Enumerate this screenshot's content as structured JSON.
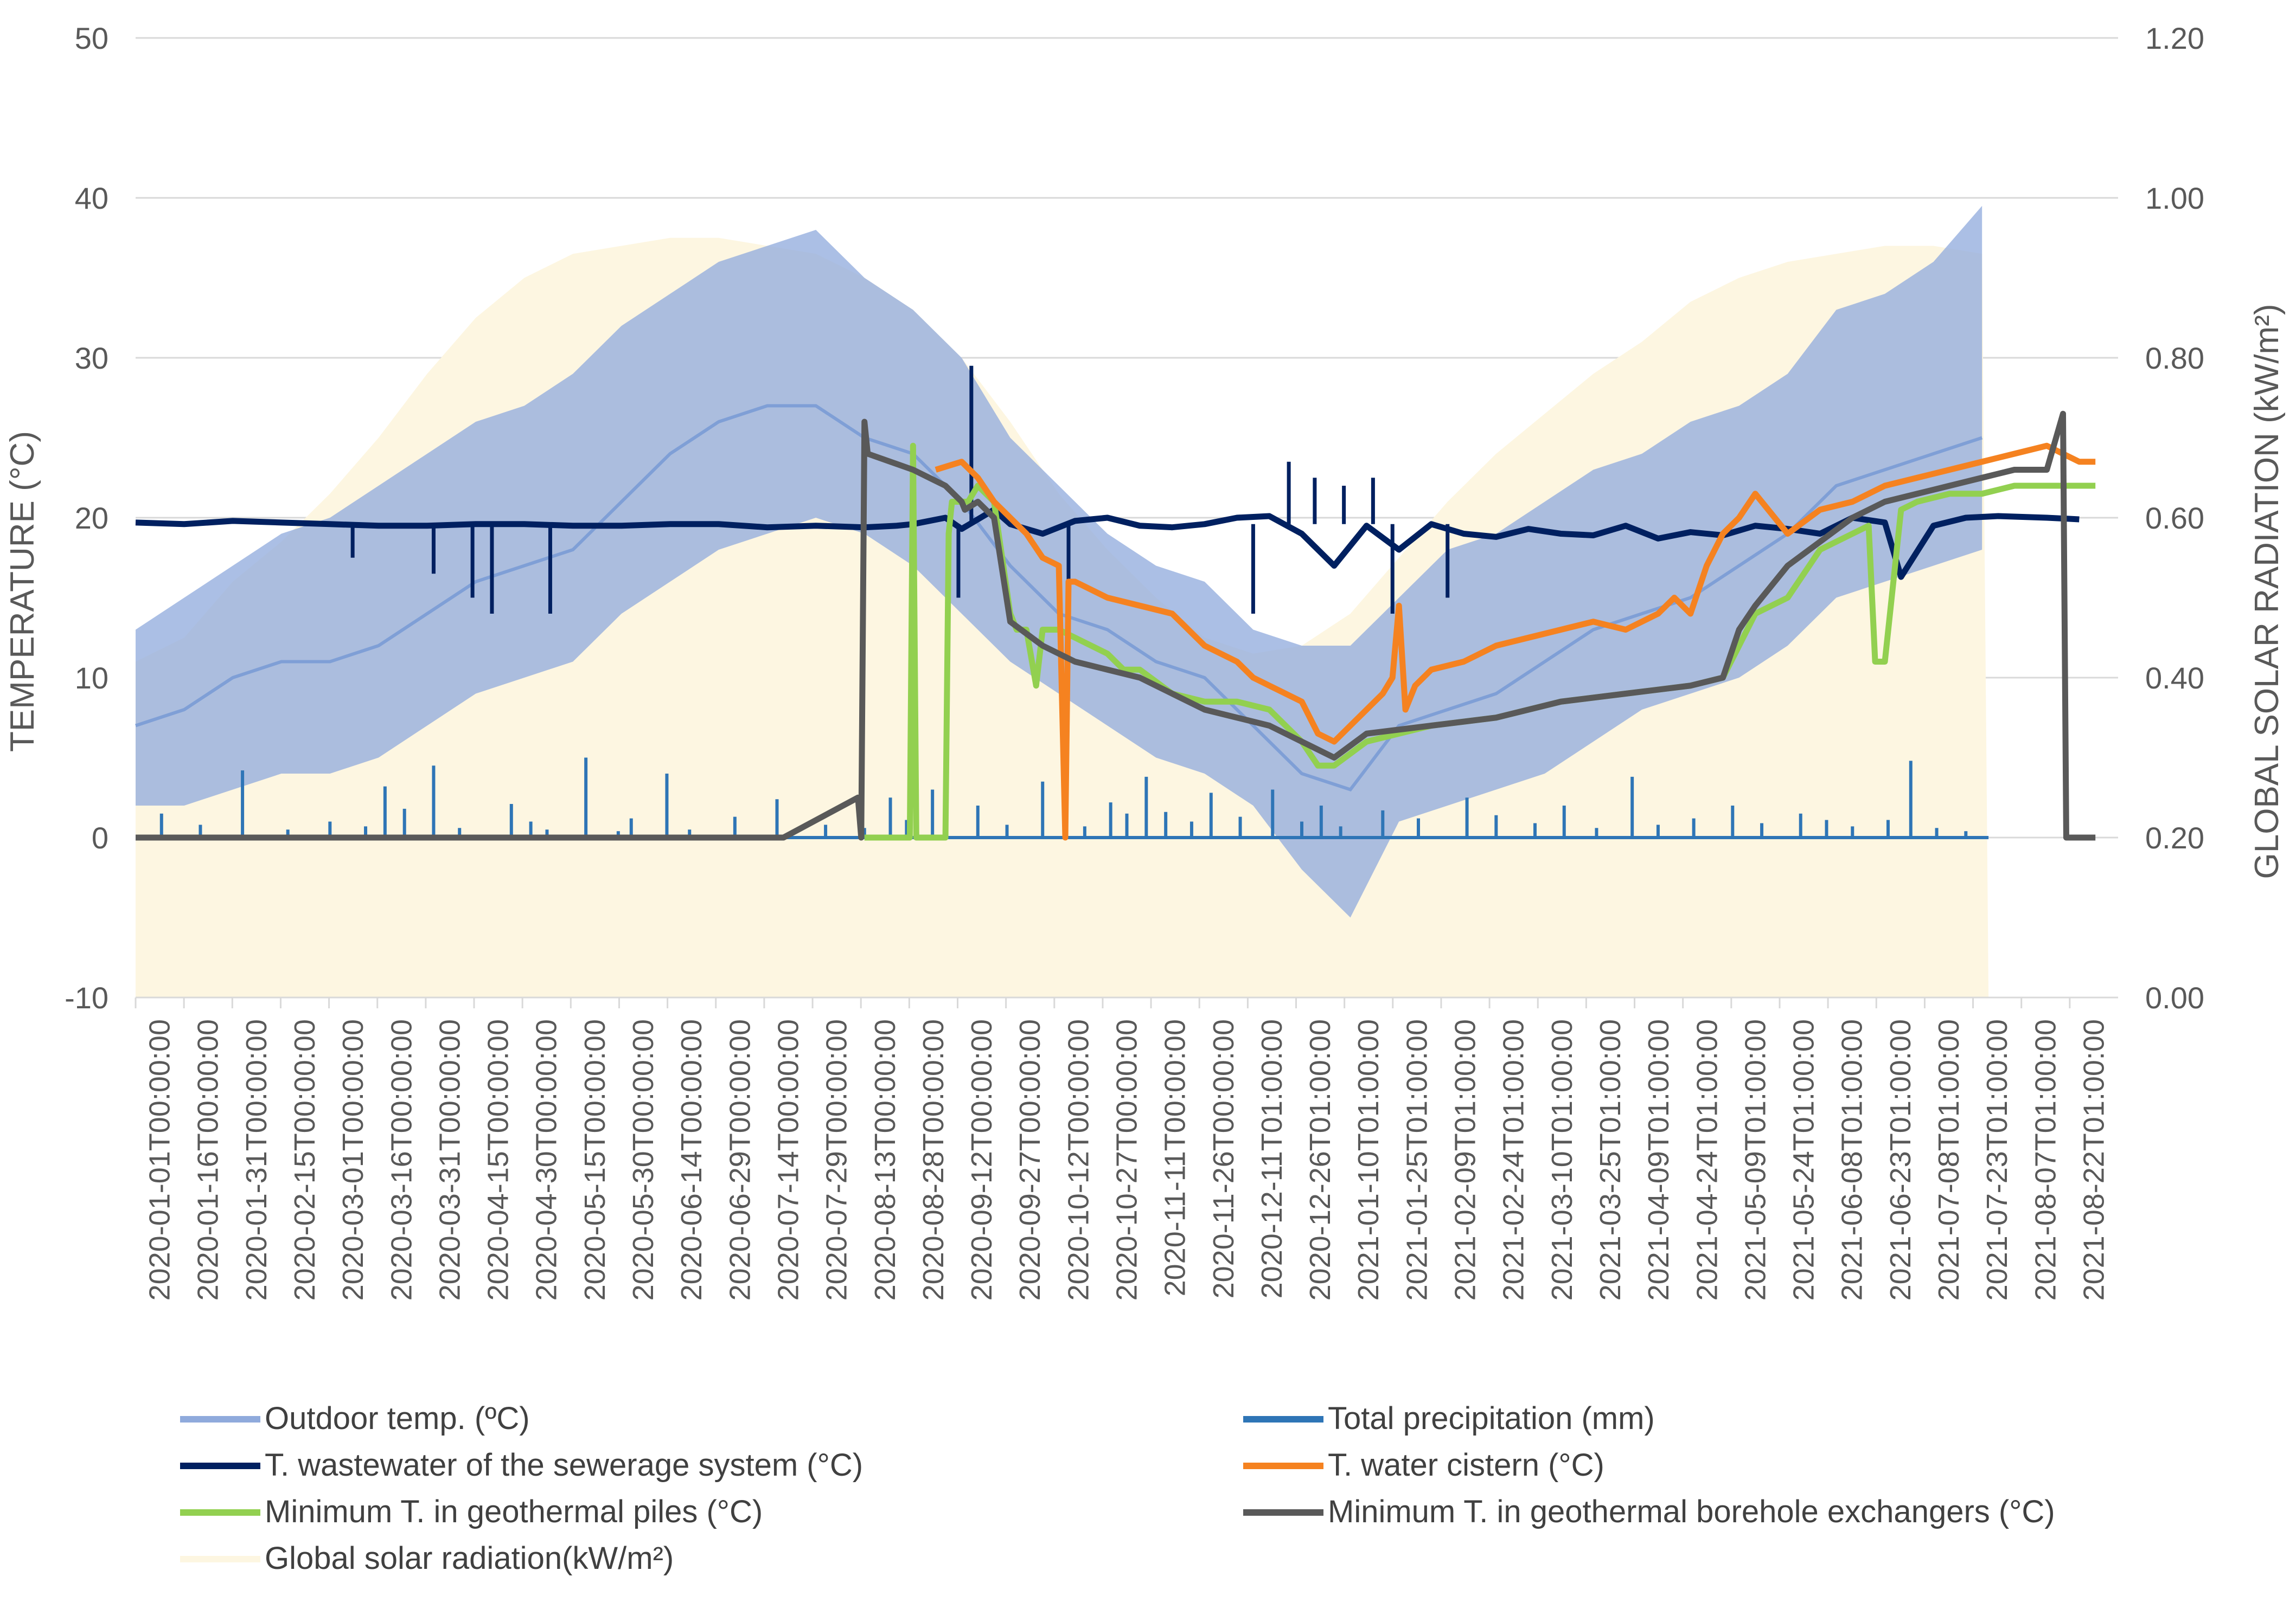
{
  "chart_data": {
    "type": "line",
    "title": "",
    "ylabel_left": "TEMPERATURE (°C)",
    "ylabel_right": "GLOBAL SOLAR RADIATION (kW/m²)",
    "ylim_left": [
      -10,
      50
    ],
    "ylim_right": [
      0.0,
      1.2
    ],
    "yticks_left": [
      "-10",
      "0",
      "10",
      "20",
      "30",
      "40",
      "50"
    ],
    "yticks_right": [
      "0.00",
      "0.20",
      "0.40",
      "0.60",
      "0.80",
      "1.00",
      "1.20"
    ],
    "grid": true,
    "legend_position": "bottom",
    "x_tick_labels": [
      "2020-01-01T00:00:00",
      "2020-01-16T00:00:00",
      "2020-01-31T00:00:00",
      "2020-02-15T00:00:00",
      "2020-03-01T00:00:00",
      "2020-03-16T00:00:00",
      "2020-03-31T00:00:00",
      "2020-04-15T00:00:00",
      "2020-04-30T00:00:00",
      "2020-05-15T00:00:00",
      "2020-05-30T00:00:00",
      "2020-06-14T00:00:00",
      "2020-06-29T00:00:00",
      "2020-07-14T00:00:00",
      "2020-07-29T00:00:00",
      "2020-08-13T00:00:00",
      "2020-08-28T00:00:00",
      "2020-09-12T00:00:00",
      "2020-09-27T00:00:00",
      "2020-10-12T00:00:00",
      "2020-10-27T00:00:00",
      "2020-11-11T00:00:00",
      "2020-11-26T00:00:00",
      "2020-12-11T01:00:00",
      "2020-12-26T01:00:00",
      "2021-01-10T01:00:00",
      "2021-01-25T01:00:00",
      "2021-02-09T01:00:00",
      "2021-02-24T01:00:00",
      "2021-03-10T01:00:00",
      "2021-03-25T01:00:00",
      "2021-04-09T01:00:00",
      "2021-04-24T01:00:00",
      "2021-05-09T01:00:00",
      "2021-05-24T01:00:00",
      "2021-06-08T01:00:00",
      "2021-06-23T01:00:00",
      "2021-07-08T01:00:00",
      "2021-07-23T01:00:00",
      "2021-08-07T01:00:00",
      "2021-08-22T01:00:00"
    ],
    "x_unit": "days since 2020-01-01",
    "x_range": [
      0,
      612
    ],
    "series": [
      {
        "name": "Global solar radiation(kW/m²)",
        "axis": "right",
        "color": "#fdf6e1",
        "style": "area",
        "x": [
          0,
          15,
          30,
          45,
          60,
          75,
          90,
          105,
          120,
          135,
          150,
          165,
          180,
          195,
          210,
          225,
          240,
          255,
          270,
          285,
          300,
          315,
          330,
          345,
          360,
          375,
          390,
          405,
          420,
          435,
          450,
          465,
          480,
          495,
          510,
          525,
          540,
          555,
          570,
          572
        ],
        "values": [
          0.42,
          0.45,
          0.52,
          0.57,
          0.63,
          0.7,
          0.78,
          0.85,
          0.9,
          0.93,
          0.94,
          0.95,
          0.95,
          0.94,
          0.93,
          0.9,
          0.86,
          0.8,
          0.72,
          0.63,
          0.56,
          0.5,
          0.45,
          0.43,
          0.44,
          0.48,
          0.55,
          0.62,
          0.68,
          0.73,
          0.78,
          0.82,
          0.87,
          0.9,
          0.92,
          0.93,
          0.94,
          0.94,
          0.93,
          0.0
        ]
      },
      {
        "name": "Outdoor temp. (ºC)",
        "axis": "left",
        "color": "#8faadc",
        "style": "band",
        "x": [
          0,
          15,
          30,
          45,
          60,
          75,
          90,
          105,
          120,
          135,
          150,
          165,
          180,
          195,
          210,
          225,
          240,
          255,
          270,
          285,
          300,
          315,
          330,
          345,
          360,
          375,
          390,
          405,
          420,
          435,
          450,
          465,
          480,
          495,
          510,
          525,
          540,
          555,
          570
        ],
        "values": [
          7,
          8,
          10,
          11,
          11,
          12,
          14,
          16,
          17,
          18,
          21,
          24,
          26,
          27,
          27,
          25,
          24,
          21,
          17,
          14,
          13,
          11,
          10,
          7,
          4,
          3,
          7,
          8,
          9,
          11,
          13,
          14,
          15,
          17,
          19,
          22,
          23,
          24,
          25
        ],
        "low": [
          2,
          2,
          3,
          4,
          4,
          5,
          7,
          9,
          10,
          11,
          14,
          16,
          18,
          19,
          20,
          19,
          17,
          14,
          11,
          9,
          7,
          5,
          4,
          2,
          -2,
          -5,
          1,
          2,
          3,
          4,
          6,
          8,
          9,
          10,
          12,
          15,
          16,
          17,
          18
        ],
        "high": [
          13,
          15,
          17,
          19,
          20,
          22,
          24,
          26,
          27,
          29,
          32,
          34,
          36,
          37,
          38,
          35,
          33,
          30,
          25,
          22,
          19,
          17,
          16,
          13,
          12,
          12,
          15,
          18,
          19,
          21,
          23,
          24,
          26,
          27,
          29,
          33,
          34,
          36,
          39.5
        ]
      },
      {
        "name": "Total precipitation (mm)",
        "axis": "left",
        "color": "#2e75b6",
        "style": "line",
        "baseline": 0,
        "x_end": 572,
        "spike_x": [
          8,
          20,
          33,
          47,
          60,
          71,
          77,
          83,
          92,
          100,
          116,
          122,
          127,
          139,
          149,
          153,
          164,
          171,
          185,
          198,
          213,
          225,
          233,
          238,
          246,
          250,
          260,
          269,
          280,
          293,
          301,
          306,
          312,
          318,
          326,
          332,
          341,
          351,
          360,
          366,
          372,
          385,
          396,
          411,
          420,
          432,
          441,
          451,
          462,
          470,
          481,
          493,
          502,
          514,
          522,
          530,
          541,
          548,
          556,
          565
        ],
        "spike_values": [
          1.5,
          0.8,
          4.2,
          0.5,
          1.0,
          0.7,
          3.2,
          1.8,
          4.5,
          0.6,
          2.1,
          1.0,
          0.5,
          5.0,
          0.4,
          1.2,
          4.0,
          0.5,
          1.3,
          2.4,
          0.8,
          0.6,
          2.5,
          1.1,
          3.0,
          1.4,
          2.0,
          0.8,
          3.5,
          0.7,
          2.2,
          1.5,
          3.8,
          1.6,
          1.0,
          2.8,
          1.3,
          3.0,
          1.0,
          2.0,
          0.7,
          1.7,
          1.2,
          2.5,
          1.4,
          0.9,
          2.0,
          0.6,
          3.8,
          0.8,
          1.2,
          2.0,
          0.9,
          1.5,
          1.1,
          0.7,
          1.1,
          4.8,
          0.6,
          0.4
        ]
      },
      {
        "name": "T. wastewater of the sewerage system (°C)",
        "axis": "left",
        "color": "#002060",
        "style": "line",
        "x": [
          0,
          15,
          30,
          45,
          60,
          75,
          90,
          105,
          120,
          135,
          150,
          165,
          180,
          195,
          210,
          225,
          235,
          240,
          250,
          255,
          265,
          270,
          280,
          290,
          300,
          310,
          320,
          330,
          340,
          350,
          360,
          370,
          380,
          390,
          400,
          410,
          420,
          430,
          440,
          450,
          460,
          470,
          480,
          490,
          500,
          510,
          520,
          530,
          540,
          545,
          555,
          565,
          575,
          590,
          600
        ],
        "values": [
          19.7,
          19.6,
          19.8,
          19.7,
          19.6,
          19.5,
          19.5,
          19.6,
          19.6,
          19.5,
          19.5,
          19.6,
          19.6,
          19.4,
          19.5,
          19.4,
          19.5,
          19.6,
          20.0,
          19.3,
          20.5,
          19.6,
          19.0,
          19.8,
          20.0,
          19.5,
          19.4,
          19.6,
          20.0,
          20.1,
          19.0,
          17.0,
          19.5,
          18.0,
          19.6,
          19.0,
          18.8,
          19.3,
          19.0,
          18.9,
          19.5,
          18.7,
          19.1,
          18.9,
          19.5,
          19.3,
          19.0,
          20.0,
          19.7,
          16.3,
          19.5,
          20.0,
          20.1,
          20.0,
          19.9
        ],
        "spike_x": [
          67,
          92,
          104,
          110,
          128,
          254,
          258,
          288,
          345,
          356,
          364,
          373,
          382,
          388,
          405
        ],
        "spike_values": [
          17.5,
          16.5,
          15.0,
          14.0,
          14.0,
          15.0,
          29.5,
          16.0,
          14.0,
          23.5,
          22.5,
          22.0,
          22.5,
          14.0,
          15.0
        ]
      },
      {
        "name": "T. water cistern (°C)",
        "axis": "left",
        "color": "#f58220",
        "style": "line",
        "x": [
          247,
          255,
          260,
          265,
          270,
          275,
          280,
          285,
          287,
          288,
          290,
          300,
          310,
          320,
          330,
          340,
          345,
          350,
          355,
          360,
          365,
          370,
          375,
          380,
          385,
          388,
          390,
          392,
          395,
          400,
          410,
          420,
          430,
          440,
          450,
          460,
          470,
          475,
          480,
          485,
          490,
          495,
          500,
          510,
          520,
          530,
          540,
          550,
          560,
          570,
          580,
          590,
          600,
          605
        ],
        "values": [
          23.0,
          23.5,
          22.5,
          21.0,
          20.0,
          19.0,
          17.5,
          17.0,
          0.0,
          16.0,
          16.0,
          15.0,
          14.5,
          14.0,
          12.0,
          11.0,
          10.0,
          9.5,
          9.0,
          8.5,
          6.5,
          6.0,
          7.0,
          8.0,
          9.0,
          10.0,
          14.5,
          8.0,
          9.5,
          10.5,
          11.0,
          12.0,
          12.5,
          13.0,
          13.5,
          13.0,
          14.0,
          15.0,
          14.0,
          17.0,
          19.0,
          20.0,
          21.5,
          19.0,
          20.5,
          21.0,
          22.0,
          22.5,
          23.0,
          23.5,
          24.0,
          24.5,
          23.5,
          23.5
        ]
      },
      {
        "name": "Minimum T. in geothermal piles (°C)",
        "axis": "left",
        "color": "#92d050",
        "style": "line",
        "x": [
          225,
          239,
          240,
          241,
          243,
          244,
          245,
          250,
          251,
          252,
          256,
          257,
          260,
          265,
          270,
          272,
          275,
          278,
          280,
          285,
          290,
          300,
          305,
          310,
          320,
          330,
          340,
          350,
          360,
          365,
          370,
          380,
          400,
          420,
          440,
          460,
          480,
          490,
          500,
          510,
          520,
          530,
          535,
          537,
          540,
          545,
          550,
          560,
          570,
          580,
          590,
          600,
          605
        ],
        "values": [
          0,
          0,
          24.5,
          0,
          0,
          0,
          0,
          0,
          19.0,
          21.0,
          21.0,
          21.0,
          22.0,
          21.0,
          14.0,
          13.0,
          13.0,
          9.5,
          13.0,
          13.0,
          12.5,
          11.5,
          10.5,
          10.5,
          9.0,
          8.5,
          8.5,
          8.0,
          6.0,
          4.5,
          4.5,
          6.0,
          7.0,
          7.5,
          8.5,
          9.0,
          9.5,
          10.0,
          14.0,
          15.0,
          18.0,
          19.0,
          19.5,
          11.0,
          11.0,
          20.5,
          21.0,
          21.5,
          21.5,
          22.0,
          22.0,
          22.0,
          22.0
        ]
      },
      {
        "name": "Minimum T. in geothermal borehole exchangers (°C)",
        "axis": "left",
        "color": "#595959",
        "style": "line",
        "x": [
          0,
          100,
          200,
          223,
          224,
          225,
          226,
          240,
          250,
          255,
          256,
          260,
          265,
          270,
          280,
          290,
          300,
          310,
          320,
          330,
          340,
          350,
          360,
          370,
          380,
          400,
          420,
          440,
          460,
          480,
          490,
          495,
          500,
          510,
          520,
          530,
          540,
          550,
          560,
          570,
          580,
          590,
          595,
          596,
          600,
          605
        ],
        "values": [
          0,
          0,
          0,
          2.5,
          0,
          26.0,
          24.0,
          23.0,
          22.0,
          21.0,
          20.5,
          21.0,
          20.0,
          13.5,
          12.0,
          11.0,
          10.5,
          10.0,
          9.0,
          8.0,
          7.5,
          7.0,
          6.0,
          5.0,
          6.5,
          7.0,
          7.5,
          8.5,
          9.0,
          9.5,
          10.0,
          13.0,
          14.5,
          17.0,
          18.5,
          20.0,
          21.0,
          21.5,
          22.0,
          22.5,
          23.0,
          23.0,
          26.5,
          0.0,
          0.0,
          0.0
        ]
      }
    ],
    "legend": [
      {
        "label": "Outdoor temp. (ºC)",
        "color": "#8faadc"
      },
      {
        "label": "Total precipitation (mm)",
        "color": "#2e75b6"
      },
      {
        "label": "T. wastewater of the sewerage system (°C)",
        "color": "#002060"
      },
      {
        "label": "T. water cistern (°C)",
        "color": "#f58220"
      },
      {
        "label": "Minimum T. in geothermal piles (°C)",
        "color": "#92d050"
      },
      {
        "label": "Minimum T. in geothermal borehole exchangers (°C)",
        "color": "#595959"
      },
      {
        "label": "Global solar radiation(kW/m²)",
        "color": "#fdf6e1"
      }
    ]
  }
}
